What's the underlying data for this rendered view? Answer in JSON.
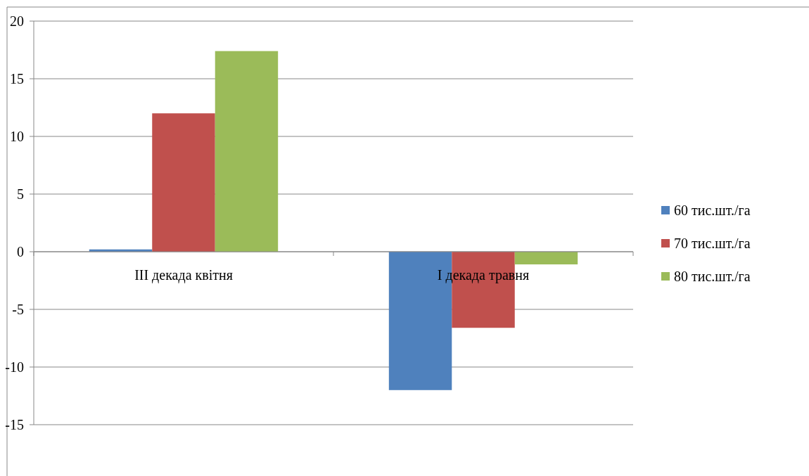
{
  "chart_data": {
    "type": "bar",
    "categories": [
      "III декада квітня",
      "I декада травня"
    ],
    "series": [
      {
        "name": "60 тис.шт./га",
        "color": "#4f81bd",
        "values": [
          0.2,
          -12
        ]
      },
      {
        "name": "70 тис.шт./га",
        "color": "#c0504d",
        "values": [
          12,
          -6.6
        ]
      },
      {
        "name": "80 тис.шт./га",
        "color": "#9bbb59",
        "values": [
          17.4,
          -1.1
        ]
      }
    ],
    "ylim": [
      -15,
      20
    ],
    "yticks": [
      {
        "value": -15,
        "label": "-15"
      },
      {
        "value": -10,
        "label": "-10"
      },
      {
        "value": -5,
        "label": "-5"
      },
      0,
      5,
      10,
      15,
      20
    ],
    "grid": "y",
    "legend": "right"
  }
}
